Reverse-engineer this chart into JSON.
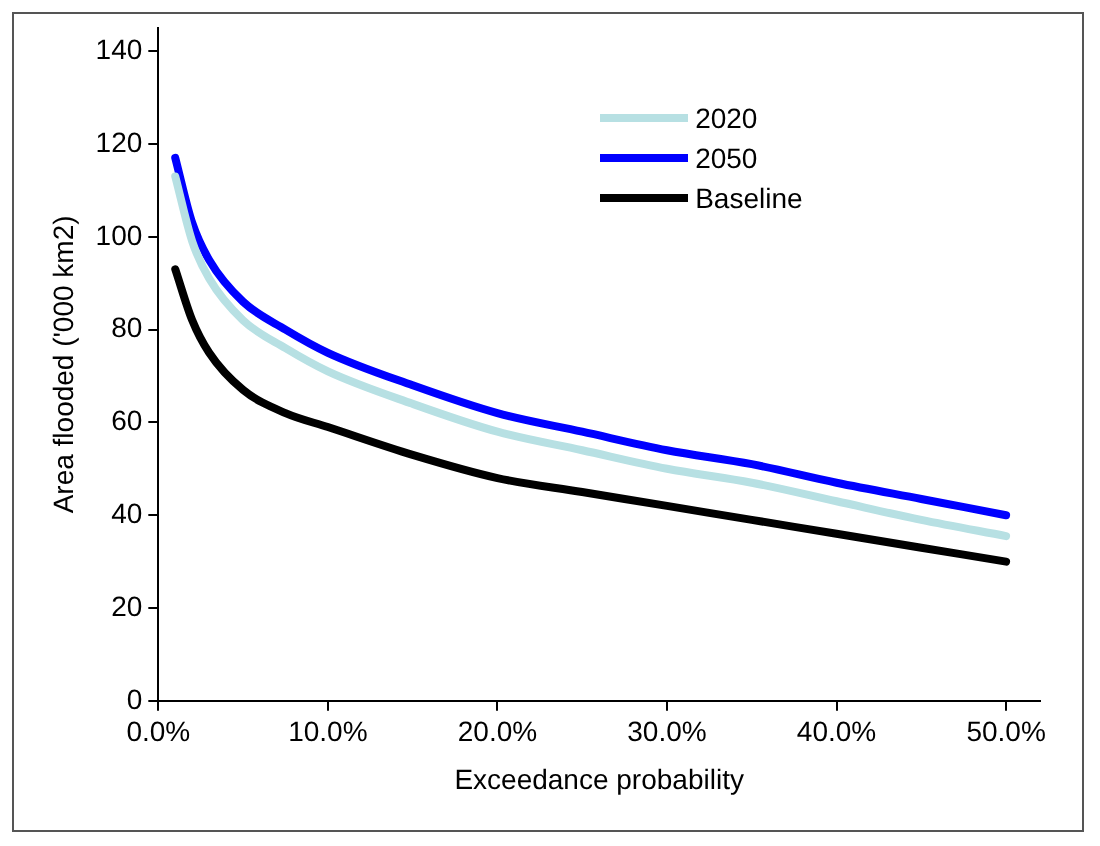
{
  "chart_data": {
    "type": "line",
    "xlabel": "Exceedance probability",
    "ylabel": "Area flooded ('000 km2)",
    "x": [
      1,
      2,
      3,
      5,
      7.5,
      10,
      15,
      20,
      25,
      30,
      35,
      40,
      45,
      50
    ],
    "series": [
      {
        "name": "2020",
        "color": "#b7e0e3",
        "values": [
          113,
          99,
          91,
          82,
          76,
          71,
          64,
          58,
          54,
          50,
          47,
          43,
          39,
          35.5
        ]
      },
      {
        "name": "2050",
        "color": "#0000ff",
        "values": [
          117,
          103,
          95,
          86,
          80,
          75,
          68,
          62,
          58,
          54,
          51,
          47,
          43.5,
          40
        ]
      },
      {
        "name": "Baseline",
        "color": "#000000",
        "values": [
          93,
          82,
          75,
          67,
          62,
          59,
          53,
          48,
          45,
          42,
          39,
          36,
          33,
          30
        ]
      }
    ],
    "xlim": [
      0,
      52
    ],
    "xticks": [
      {
        "value": 0,
        "label": "0.0%"
      },
      {
        "value": 10,
        "label": "10.0%"
      },
      {
        "value": 20,
        "label": "20.0%"
      },
      {
        "value": 30,
        "label": "30.0%"
      },
      {
        "value": 40,
        "label": "40.0%"
      },
      {
        "value": 50,
        "label": "50.0%"
      }
    ],
    "ylim": [
      0,
      145
    ],
    "yticks": [
      0,
      20,
      40,
      60,
      80,
      100,
      120,
      140
    ],
    "legend": "top right",
    "marker": "none",
    "line_style": "solid",
    "grid": false
  }
}
